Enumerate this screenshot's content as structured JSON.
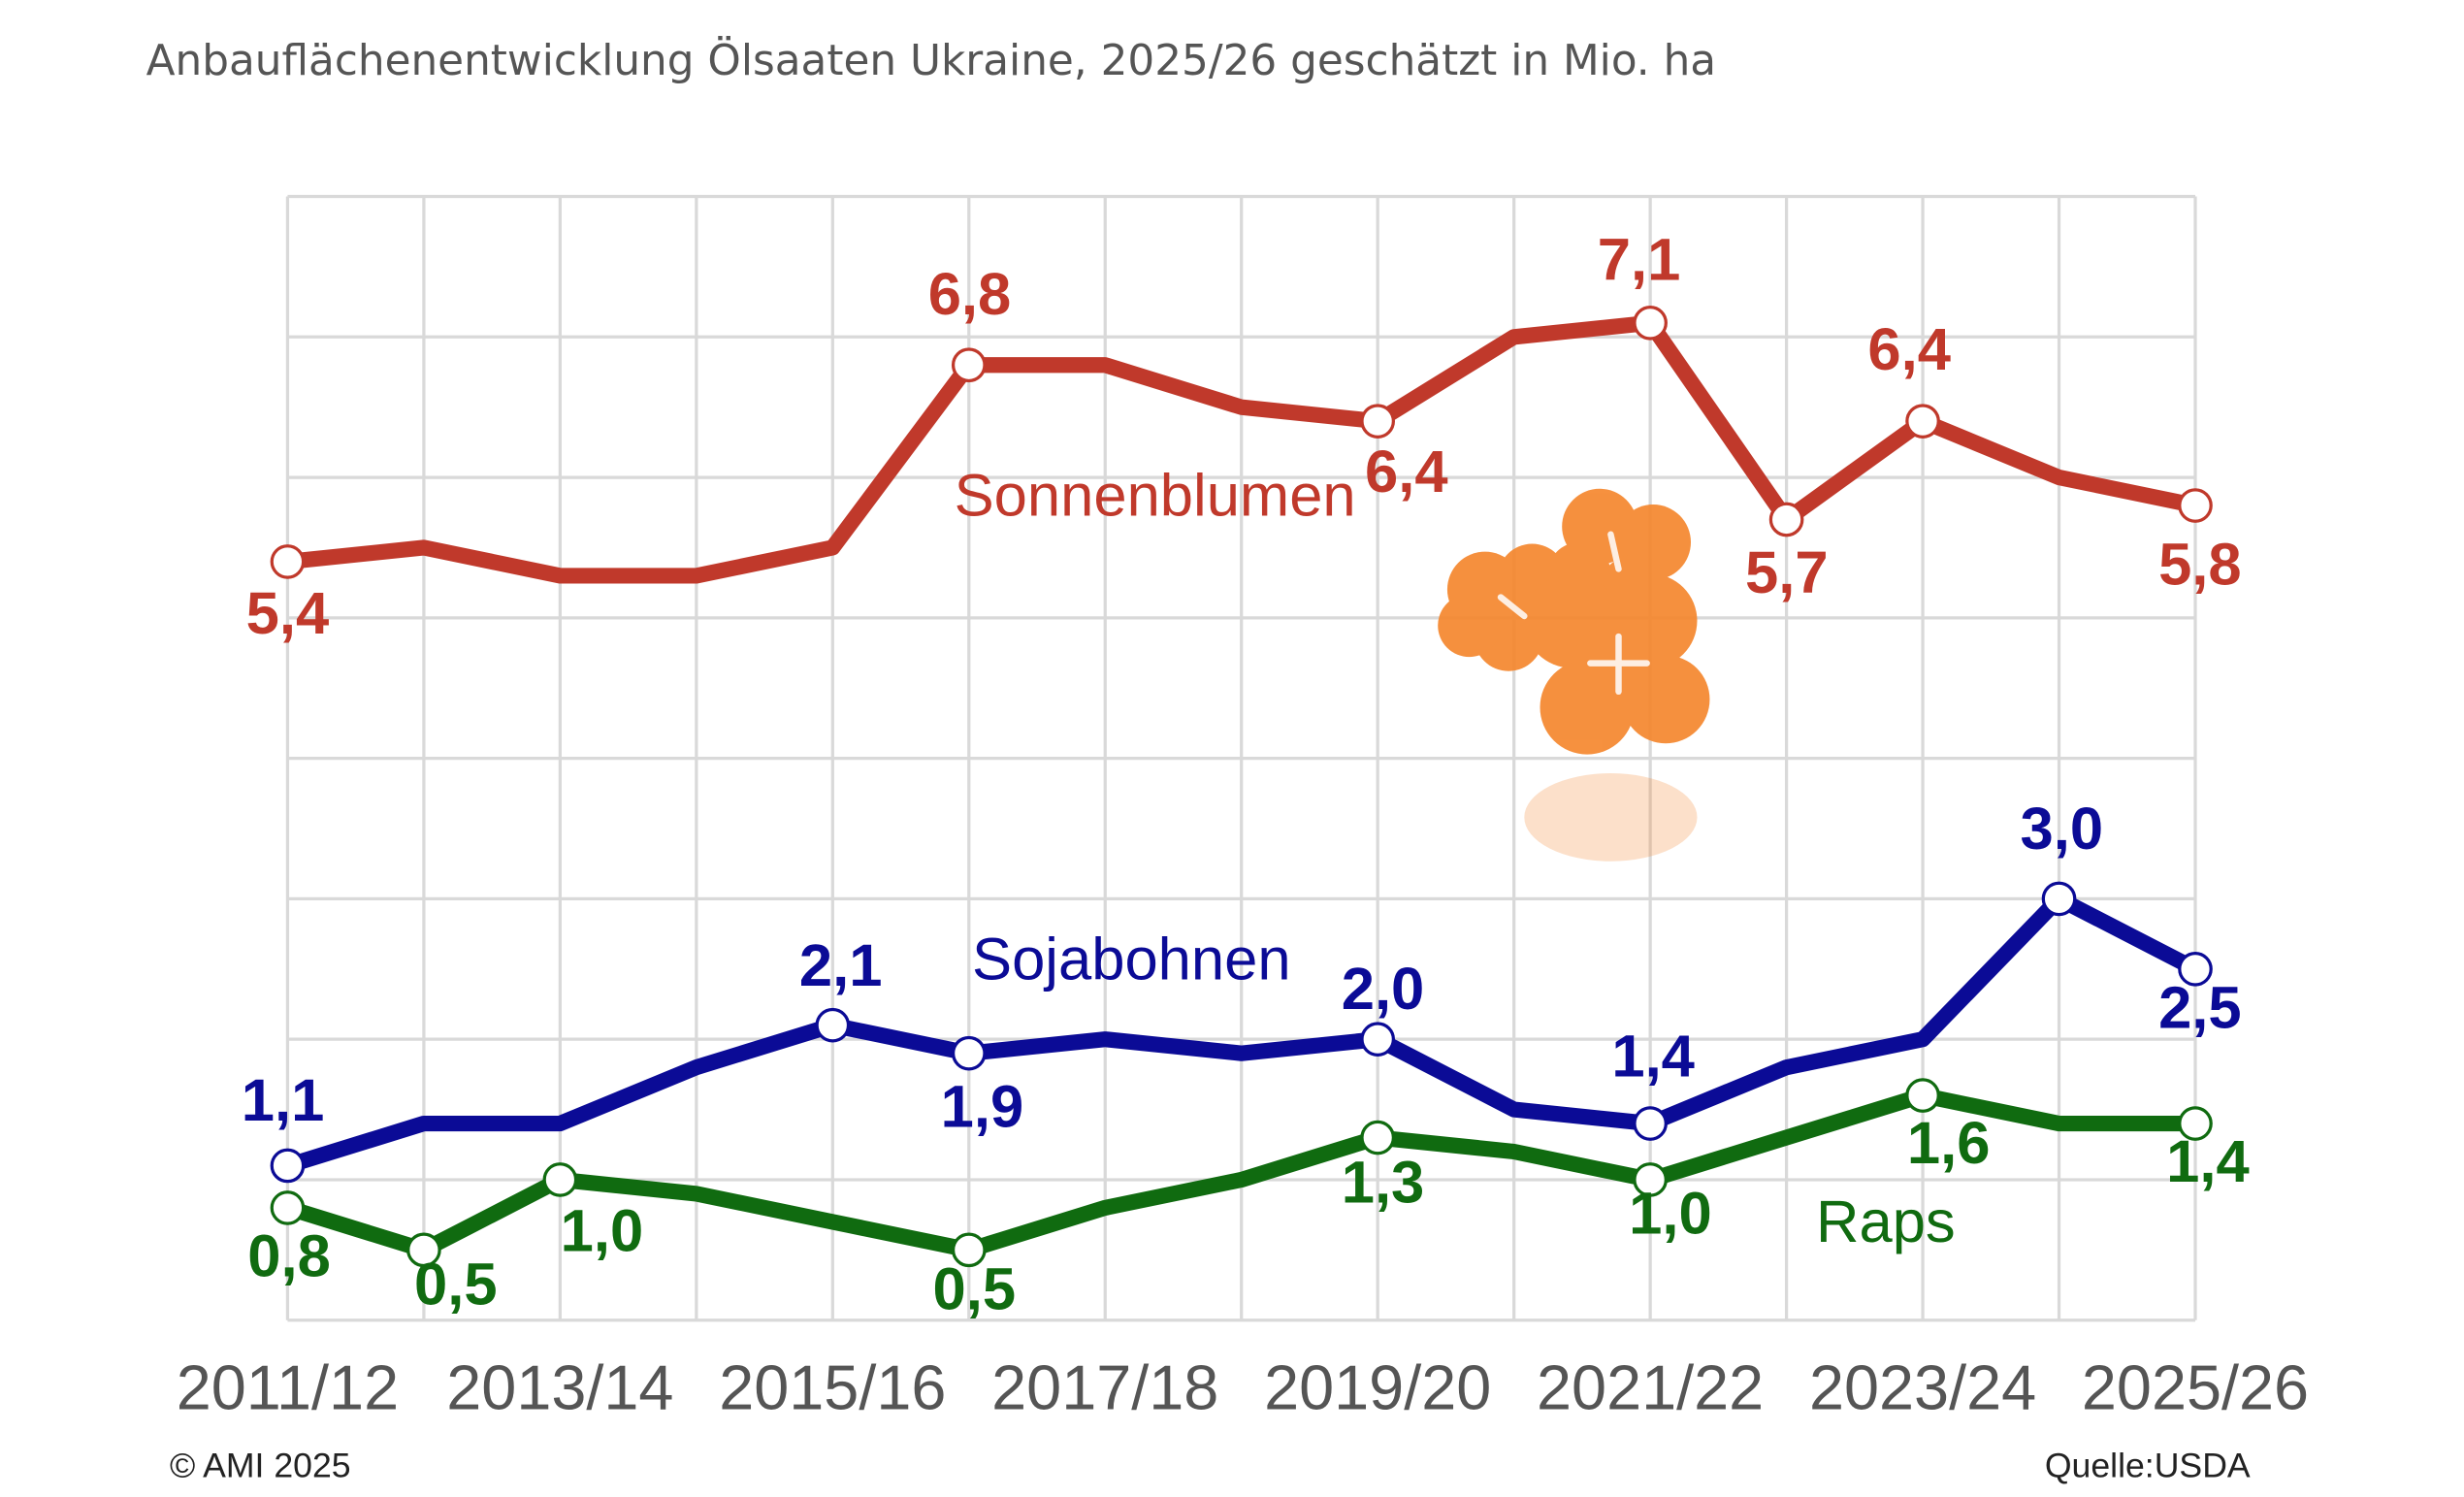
{
  "chart_data": {
    "type": "line",
    "title": "Anbauflächenentwicklung Ölsaaten Ukraine, 2025/26 geschätzt in Mio. ha",
    "categories": [
      "2011/12",
      null,
      "2013/14",
      null,
      "2015/16",
      null,
      "2017/18",
      null,
      "2019/20",
      null,
      "2021/22",
      null,
      "2023/24",
      null,
      "2025/26"
    ],
    "series": [
      {
        "name": "Sonnenblumen",
        "color": "#c0392b",
        "values": [
          5.4,
          5.5,
          5.3,
          5.3,
          5.5,
          6.8,
          6.8,
          6.5,
          6.4,
          7.0,
          7.1,
          5.7,
          6.4,
          6.0,
          5.8
        ],
        "value_labels": [
          "5,4",
          null,
          null,
          null,
          null,
          "6,8",
          null,
          null,
          "6,4",
          null,
          "7,1",
          "5,7",
          "6,4",
          null,
          "5,8"
        ]
      },
      {
        "name": "Sojabohnen",
        "color": "#0b0b96",
        "values": [
          1.1,
          1.4,
          1.4,
          1.8,
          2.1,
          1.9,
          2.0,
          1.9,
          2.0,
          1.5,
          1.4,
          1.8,
          2.0,
          3.0,
          2.5
        ],
        "value_labels": [
          "1,1",
          null,
          null,
          null,
          "2,1",
          "1,9",
          null,
          null,
          "2,0",
          null,
          "1,4",
          null,
          null,
          "3,0",
          "2,5"
        ]
      },
      {
        "name": "Raps",
        "color": "#106b10",
        "values": [
          0.8,
          0.5,
          1.0,
          0.9,
          0.7,
          0.5,
          0.8,
          1.0,
          1.3,
          1.2,
          1.0,
          1.3,
          1.6,
          1.4,
          1.4
        ],
        "value_labels": [
          "0,8",
          "0,5",
          "1,0",
          null,
          null,
          "0,5",
          null,
          null,
          "1,3",
          null,
          "1,0",
          null,
          "1,6",
          null,
          "1,4"
        ]
      }
    ],
    "ylim": [
      0,
      8
    ],
    "yticks": [
      0,
      1,
      2,
      3,
      4,
      5,
      6,
      7,
      8
    ],
    "grid": true,
    "copyright": "© AMI 2025",
    "source": "Quelle:USDA"
  }
}
